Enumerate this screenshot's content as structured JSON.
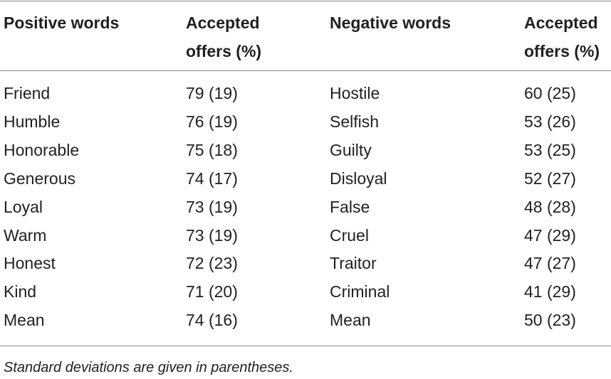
{
  "table": {
    "headers": {
      "col1": "Positive words",
      "col2_line1": "Accepted",
      "col2_line2": "offers (%)",
      "col3": "Negative words",
      "col4_line1": "Accepted",
      "col4_line2": "offers (%)"
    },
    "rows": [
      {
        "pos_word": "Friend",
        "pos_val": "79 (19)",
        "neg_word": "Hostile",
        "neg_val": "60 (25)"
      },
      {
        "pos_word": "Humble",
        "pos_val": "76 (19)",
        "neg_word": "Selfish",
        "neg_val": "53 (26)"
      },
      {
        "pos_word": "Honorable",
        "pos_val": "75 (18)",
        "neg_word": "Guilty",
        "neg_val": "53 (25)"
      },
      {
        "pos_word": "Generous",
        "pos_val": "74 (17)",
        "neg_word": "Disloyal",
        "neg_val": "52 (27)"
      },
      {
        "pos_word": "Loyal",
        "pos_val": "73 (19)",
        "neg_word": "False",
        "neg_val": "48 (28)"
      },
      {
        "pos_word": "Warm",
        "pos_val": "73 (19)",
        "neg_word": "Cruel",
        "neg_val": "47 (29)"
      },
      {
        "pos_word": "Honest",
        "pos_val": "72 (23)",
        "neg_word": "Traitor",
        "neg_val": "47 (27)"
      },
      {
        "pos_word": "Kind",
        "pos_val": "71 (20)",
        "neg_word": "Criminal",
        "neg_val": "41 (29)"
      },
      {
        "pos_word": "Mean",
        "pos_val": "74 (16)",
        "neg_word": "Mean",
        "neg_val": "50 (23)"
      }
    ],
    "footnote": "Standard deviations are given in parentheses."
  }
}
